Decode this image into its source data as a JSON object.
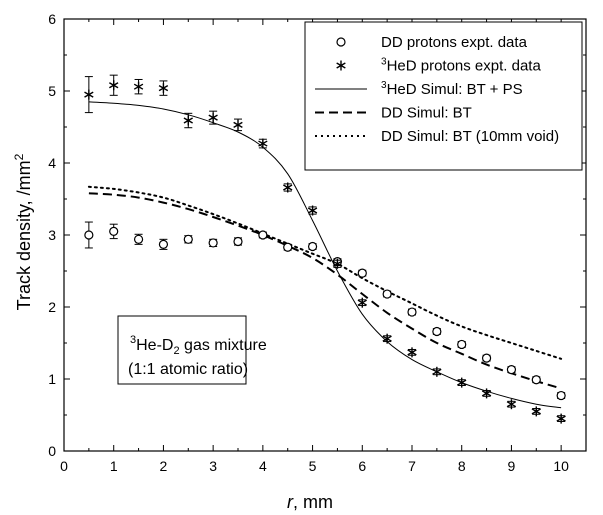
{
  "chart_data": {
    "type": "scatter",
    "xlabel": "r, mm",
    "xlabel_italic": "r",
    "xlabel_rest": ", mm",
    "ylabel": "Track density,  /mm²",
    "ylabel_main": "Track density,  /mm",
    "ylabel_sup": "2",
    "xlim": [
      0,
      10.5
    ],
    "ylim": [
      0,
      6
    ],
    "xticks": [
      0,
      0.5,
      1,
      1.5,
      2,
      2.5,
      3,
      3.5,
      4,
      4.5,
      5,
      5.5,
      6,
      6.5,
      7,
      7.5,
      8,
      8.5,
      9,
      9.5,
      10
    ],
    "xtick_labels": [
      "0",
      "1",
      "2",
      "3",
      "4",
      "5",
      "6",
      "7",
      "8",
      "9",
      "10"
    ],
    "yticks": [
      0,
      1,
      2,
      3,
      4,
      5,
      6
    ],
    "ytick_labels": [
      "0",
      "1",
      "2",
      "3",
      "4",
      "5",
      "6"
    ],
    "grid": false,
    "legend_position": "top-right",
    "annotation": {
      "sup1": "3",
      "main1": "He-D",
      "sub1": "2",
      "rest1": " gas mixture",
      "line2": "(1:1 atomic ratio)"
    },
    "series": [
      {
        "name": "DD protons expt. data",
        "legend_text": " DD protons expt. data",
        "legend_sup": "",
        "kind": "points",
        "marker": "circle",
        "x": [
          0.5,
          1.0,
          1.5,
          2.0,
          2.5,
          3.0,
          3.5,
          4.0,
          4.5,
          5.0,
          5.5,
          6.0,
          6.5,
          7.0,
          7.5,
          8.0,
          8.5,
          9.0,
          9.5,
          10.0
        ],
        "y": [
          3.0,
          3.05,
          2.94,
          2.87,
          2.94,
          2.89,
          2.91,
          3.0,
          2.83,
          2.84,
          2.63,
          2.47,
          2.18,
          1.93,
          1.66,
          1.48,
          1.29,
          1.13,
          0.99,
          0.77
        ],
        "err": [
          0.18,
          0.1,
          0.07,
          0.07,
          0.05,
          0.05,
          0.05,
          0.04,
          0.04,
          0.04,
          0.04,
          0.04,
          0.04,
          0.04,
          0.04,
          0.04,
          0.04,
          0.04,
          0.04,
          0.04
        ]
      },
      {
        "name": "3HeD protons expt. data",
        "legend_sup": "3",
        "legend_text": "HeD protons expt. data",
        "kind": "points",
        "marker": "asterisk",
        "x": [
          0.5,
          1.0,
          1.5,
          2.0,
          2.5,
          3.0,
          3.5,
          4.0,
          4.5,
          5.0,
          5.5,
          6.0,
          6.5,
          7.0,
          7.5,
          8.0,
          8.5,
          9.0,
          9.5,
          10.0
        ],
        "y": [
          4.95,
          5.08,
          5.06,
          5.04,
          4.59,
          4.63,
          4.53,
          4.27,
          3.66,
          3.34,
          2.6,
          2.06,
          1.56,
          1.37,
          1.1,
          0.95,
          0.8,
          0.65,
          0.55,
          0.45
        ],
        "err": [
          0.25,
          0.14,
          0.1,
          0.1,
          0.1,
          0.09,
          0.08,
          0.06,
          0.05,
          0.05,
          0.05,
          0.04,
          0.04,
          0.04,
          0.04,
          0.04,
          0.04,
          0.04,
          0.04,
          0.04
        ]
      },
      {
        "name": "3HeD Simul: BT + PS",
        "legend_sup": "3",
        "legend_text": "HeD Simul: BT + PS",
        "kind": "line",
        "dash": "solid",
        "x": [
          0.5,
          1.0,
          1.5,
          2.0,
          2.5,
          3.0,
          3.5,
          4.0,
          4.5,
          5.0,
          5.5,
          6.0,
          6.5,
          7.0,
          7.5,
          8.0,
          8.5,
          9.0,
          9.5,
          10.0
        ],
        "y": [
          4.85,
          4.83,
          4.8,
          4.75,
          4.67,
          4.56,
          4.43,
          4.22,
          3.85,
          3.2,
          2.5,
          1.9,
          1.52,
          1.27,
          1.1,
          0.95,
          0.83,
          0.73,
          0.65,
          0.6
        ]
      },
      {
        "name": "DD Simul: BT",
        "legend_sup": "",
        "legend_text": "DD Simul: BT",
        "kind": "line",
        "dash": "dashed",
        "x": [
          0.5,
          1.0,
          1.5,
          2.0,
          2.5,
          3.0,
          3.5,
          4.0,
          4.5,
          5.0,
          5.5,
          6.0,
          6.5,
          7.0,
          7.5,
          8.0,
          8.5,
          9.0,
          9.5,
          10.0
        ],
        "y": [
          3.58,
          3.56,
          3.52,
          3.45,
          3.36,
          3.25,
          3.13,
          3.0,
          2.85,
          2.68,
          2.45,
          2.18,
          1.92,
          1.7,
          1.5,
          1.35,
          1.2,
          1.08,
          0.97,
          0.87
        ]
      },
      {
        "name": "DD Simul: BT (10mm void)",
        "legend_sup": "",
        "legend_text": "DD Simul: BT (10mm void)",
        "kind": "line",
        "dash": "dotted",
        "x": [
          0.5,
          1.0,
          1.5,
          2.0,
          2.5,
          3.0,
          3.5,
          4.0,
          4.5,
          5.0,
          5.5,
          6.0,
          6.5,
          7.0,
          7.5,
          8.0,
          8.5,
          9.0,
          9.5,
          10.0
        ],
        "y": [
          3.67,
          3.64,
          3.59,
          3.52,
          3.41,
          3.29,
          3.16,
          3.02,
          2.88,
          2.74,
          2.6,
          2.4,
          2.22,
          2.05,
          1.88,
          1.73,
          1.61,
          1.5,
          1.39,
          1.28
        ]
      }
    ]
  }
}
